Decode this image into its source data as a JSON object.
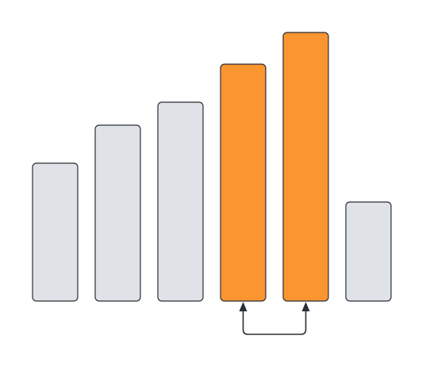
{
  "chart_data": {
    "type": "bar",
    "values": [
      174,
      222,
      251,
      299,
      339,
      125
    ],
    "highlighted_indices": [
      3,
      4
    ],
    "connector": {
      "from_index": 3,
      "to_index": 4,
      "style": "bracket-below-with-up-arrows"
    },
    "legend": "none",
    "grid": false
  },
  "colors": {
    "bar_default": "#dfe2e7",
    "bar_highlight": "#fb9530",
    "stroke": "#2b2f36",
    "background": "#ffffff"
  }
}
